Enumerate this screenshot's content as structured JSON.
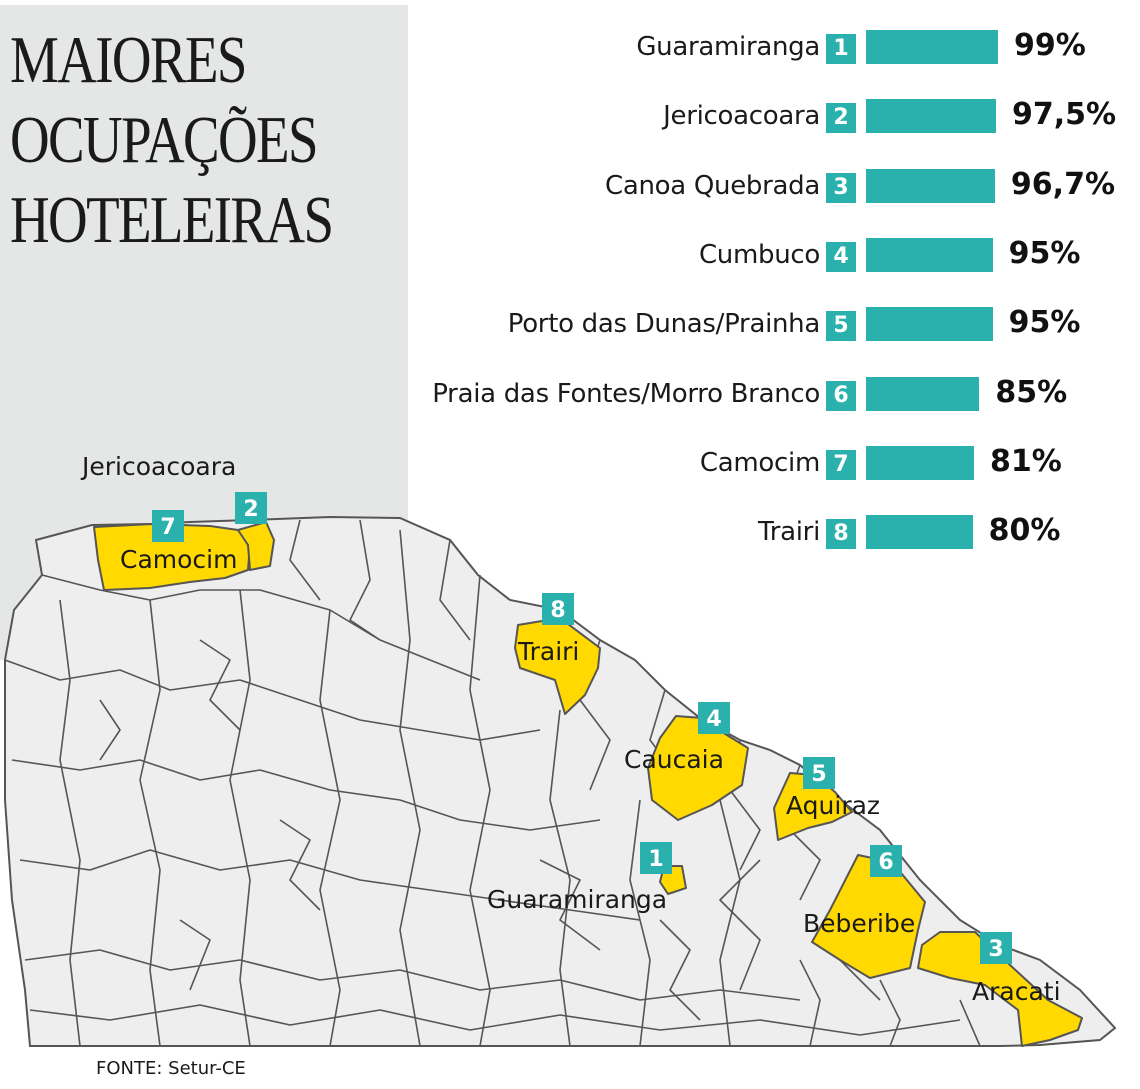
{
  "title_lines": [
    "MAIORES",
    "OCUPAÇÕES",
    "HOTELEIRAS"
  ],
  "source": "FONTE: Setur-CE",
  "colors": {
    "bar": "#2bb1ad",
    "highlight": "#ffd900",
    "map_fill": "#eeeeee",
    "border": "#555555"
  },
  "chart_data": {
    "type": "bar",
    "orientation": "horizontal",
    "unit": "%",
    "categories": [
      "Guaramiranga",
      "Jericoacoara",
      "Canoa Quebrada",
      "Cumbuco",
      "Porto das Dunas/Prainha",
      "Praia das Fontes/Morro Branco",
      "Camocim",
      "Trairi"
    ],
    "ranks": [
      "1",
      "2",
      "3",
      "4",
      "5",
      "6",
      "7",
      "8"
    ],
    "values": [
      99,
      97.5,
      96.7,
      95,
      95,
      85,
      81,
      80
    ],
    "value_labels": [
      "99%",
      "97,5%",
      "96,7%",
      "95%",
      "95%",
      "85%",
      "81%",
      "80%"
    ]
  },
  "map": {
    "labels": [
      "Jericoacoara",
      "Camocim",
      "Trairi",
      "Caucaia",
      "Aquiraz",
      "Guaramiranga",
      "Beberibe",
      "Aracati"
    ],
    "pins": [
      "7",
      "2",
      "8",
      "4",
      "5",
      "1",
      "6",
      "3"
    ]
  }
}
